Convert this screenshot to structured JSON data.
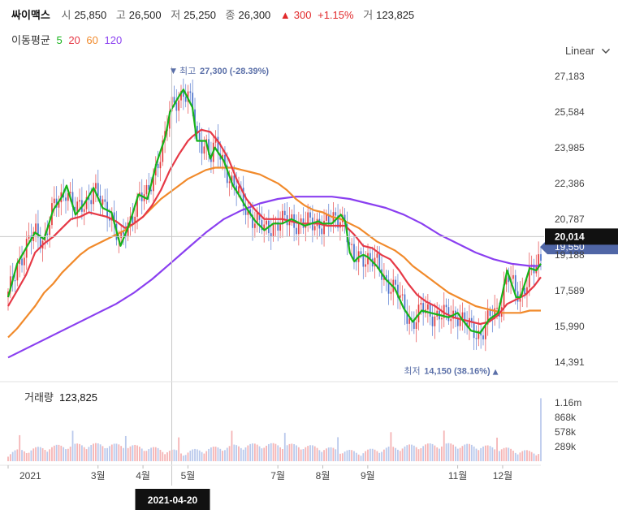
{
  "header": {
    "stock_name": "싸이맥스",
    "open_label": "시",
    "open": "25,850",
    "high_label": "고",
    "high": "26,500",
    "low_label": "저",
    "low": "25,250",
    "close_label": "종",
    "close": "26,300",
    "change_arrow": "▲",
    "change": "300",
    "change_pct": "+1.15%",
    "volume_label": "거",
    "volume": "123,825"
  },
  "ma_legend": {
    "label": "이동평균",
    "ma5": "5",
    "ma20": "20",
    "ma60": "60",
    "ma120": "120"
  },
  "scale_toggle": {
    "label": "Linear",
    "icon": "chevron-down-icon"
  },
  "colors": {
    "ma5": "#16b31a",
    "ma20": "#e63946",
    "ma60": "#f18a2b",
    "ma120": "#8a3ff0",
    "up": "#e1292b",
    "down": "#3a64c8",
    "annot": "#5a6fa8"
  },
  "chart_data": {
    "type": "candlestick",
    "y_ticks": [
      "27,183",
      "25,584",
      "23,985",
      "22,386",
      "20,787",
      "19,188",
      "17,589",
      "15,990",
      "14,391"
    ],
    "y_tick_values": [
      27183,
      25584,
      23985,
      22386,
      20787,
      19188,
      17589,
      15990,
      14391
    ],
    "x_ticks": [
      "2021",
      "3월",
      "4월",
      "5월",
      "7월",
      "8월",
      "9월",
      "11월",
      "12월"
    ],
    "x_tick_months": [
      0.0,
      2.0,
      3.0,
      4.0,
      6.0,
      7.0,
      8.0,
      10.0,
      11.0
    ],
    "month_range": [
      0.0,
      11.85
    ],
    "ylim": [
      13700,
      27700
    ],
    "crosshair": {
      "date": "2021-04-20",
      "month": 3.64,
      "price": "20,014",
      "price_value": 20014
    },
    "current_price": {
      "label": "19,550",
      "value": 19550
    },
    "max_annotation": {
      "arrow": "▼",
      "label": "최고",
      "value": "27,300 (-28.39%)",
      "price": 27300,
      "month": 3.65
    },
    "min_annotation": {
      "label": "최저",
      "value": "14,150 (38.16%)",
      "arrow": "▲",
      "price": 14150,
      "month": 10.85
    },
    "ma_series": {
      "ma5": [
        [
          0.0,
          17300
        ],
        [
          0.2,
          18800
        ],
        [
          0.4,
          19500
        ],
        [
          0.6,
          20200
        ],
        [
          0.8,
          19900
        ],
        [
          1.0,
          21200
        ],
        [
          1.2,
          21800
        ],
        [
          1.3,
          22300
        ],
        [
          1.5,
          21000
        ],
        [
          1.7,
          21500
        ],
        [
          1.9,
          22200
        ],
        [
          2.1,
          21300
        ],
        [
          2.3,
          21100
        ],
        [
          2.5,
          19600
        ],
        [
          2.7,
          20600
        ],
        [
          2.9,
          21900
        ],
        [
          3.1,
          21700
        ],
        [
          3.3,
          23300
        ],
        [
          3.5,
          24500
        ],
        [
          3.6,
          25600
        ],
        [
          3.8,
          26300
        ],
        [
          3.9,
          26600
        ],
        [
          4.1,
          25800
        ],
        [
          4.2,
          24300
        ],
        [
          4.4,
          24300
        ],
        [
          4.5,
          23500
        ],
        [
          4.6,
          24000
        ],
        [
          4.8,
          23400
        ],
        [
          5.0,
          22300
        ],
        [
          5.1,
          22000
        ],
        [
          5.3,
          21300
        ],
        [
          5.5,
          20700
        ],
        [
          5.7,
          20300
        ],
        [
          5.9,
          20600
        ],
        [
          6.1,
          20600
        ],
        [
          6.3,
          20800
        ],
        [
          6.6,
          20500
        ],
        [
          6.9,
          20700
        ],
        [
          7.0,
          20600
        ],
        [
          7.2,
          20600
        ],
        [
          7.4,
          21000
        ],
        [
          7.5,
          20700
        ],
        [
          7.6,
          19300
        ],
        [
          7.7,
          18900
        ],
        [
          7.8,
          19100
        ],
        [
          7.9,
          19200
        ],
        [
          8.0,
          19100
        ],
        [
          8.2,
          18700
        ],
        [
          8.4,
          18100
        ],
        [
          8.6,
          17700
        ],
        [
          8.8,
          16800
        ],
        [
          9.0,
          16200
        ],
        [
          9.2,
          16700
        ],
        [
          9.4,
          16600
        ],
        [
          9.6,
          16500
        ],
        [
          9.8,
          16400
        ],
        [
          10.0,
          16600
        ],
        [
          10.1,
          16300
        ],
        [
          10.3,
          15800
        ],
        [
          10.5,
          15700
        ],
        [
          10.7,
          16300
        ],
        [
          10.9,
          16600
        ],
        [
          11.0,
          17500
        ],
        [
          11.1,
          18500
        ],
        [
          11.3,
          17300
        ],
        [
          11.4,
          17300
        ],
        [
          11.6,
          18600
        ],
        [
          11.75,
          18500
        ],
        [
          11.85,
          18800
        ]
      ],
      "ma20": [
        [
          0.0,
          16900
        ],
        [
          0.2,
          17600
        ],
        [
          0.4,
          18300
        ],
        [
          0.6,
          19300
        ],
        [
          0.8,
          19700
        ],
        [
          1.0,
          20000
        ],
        [
          1.2,
          20400
        ],
        [
          1.4,
          20800
        ],
        [
          1.6,
          20900
        ],
        [
          1.8,
          21100
        ],
        [
          2.0,
          21000
        ],
        [
          2.2,
          20900
        ],
        [
          2.4,
          20700
        ],
        [
          2.6,
          20400
        ],
        [
          2.8,
          20600
        ],
        [
          3.0,
          20900
        ],
        [
          3.2,
          21400
        ],
        [
          3.4,
          22100
        ],
        [
          3.6,
          23000
        ],
        [
          3.8,
          23700
        ],
        [
          4.0,
          24300
        ],
        [
          4.1,
          24500
        ],
        [
          4.3,
          24800
        ],
        [
          4.5,
          24700
        ],
        [
          4.7,
          24200
        ],
        [
          4.9,
          23500
        ],
        [
          5.1,
          22500
        ],
        [
          5.3,
          21700
        ],
        [
          5.5,
          21200
        ],
        [
          5.7,
          20800
        ],
        [
          5.9,
          20800
        ],
        [
          6.1,
          20800
        ],
        [
          6.3,
          20700
        ],
        [
          6.5,
          20600
        ],
        [
          6.7,
          20600
        ],
        [
          6.9,
          20600
        ],
        [
          7.1,
          20500
        ],
        [
          7.3,
          20500
        ],
        [
          7.5,
          20500
        ],
        [
          7.7,
          20100
        ],
        [
          7.9,
          19600
        ],
        [
          8.1,
          19500
        ],
        [
          8.3,
          19200
        ],
        [
          8.5,
          19000
        ],
        [
          8.7,
          18500
        ],
        [
          8.9,
          17900
        ],
        [
          9.1,
          17400
        ],
        [
          9.3,
          17100
        ],
        [
          9.5,
          16900
        ],
        [
          9.7,
          16600
        ],
        [
          9.9,
          16400
        ],
        [
          10.1,
          16300
        ],
        [
          10.3,
          16200
        ],
        [
          10.5,
          16100
        ],
        [
          10.7,
          16200
        ],
        [
          10.9,
          16500
        ],
        [
          11.1,
          17000
        ],
        [
          11.3,
          17200
        ],
        [
          11.5,
          17400
        ],
        [
          11.7,
          17800
        ],
        [
          11.85,
          18200
        ]
      ],
      "ma60": [
        [
          0.0,
          15500
        ],
        [
          0.2,
          15900
        ],
        [
          0.4,
          16400
        ],
        [
          0.6,
          16900
        ],
        [
          0.8,
          17500
        ],
        [
          1.0,
          17900
        ],
        [
          1.2,
          18400
        ],
        [
          1.4,
          18800
        ],
        [
          1.6,
          19200
        ],
        [
          1.8,
          19500
        ],
        [
          2.0,
          19700
        ],
        [
          2.2,
          19900
        ],
        [
          2.4,
          20100
        ],
        [
          2.6,
          20300
        ],
        [
          2.8,
          20600
        ],
        [
          3.0,
          20900
        ],
        [
          3.2,
          21300
        ],
        [
          3.4,
          21700
        ],
        [
          3.6,
          22000
        ],
        [
          3.8,
          22300
        ],
        [
          4.0,
          22600
        ],
        [
          4.2,
          22800
        ],
        [
          4.4,
          23000
        ],
        [
          4.6,
          23100
        ],
        [
          4.8,
          23100
        ],
        [
          5.0,
          23100
        ],
        [
          5.2,
          23000
        ],
        [
          5.4,
          22900
        ],
        [
          5.6,
          22800
        ],
        [
          5.8,
          22600
        ],
        [
          6.0,
          22400
        ],
        [
          6.2,
          22100
        ],
        [
          6.4,
          21700
        ],
        [
          6.6,
          21400
        ],
        [
          6.8,
          21200
        ],
        [
          7.0,
          21100
        ],
        [
          7.2,
          20900
        ],
        [
          7.4,
          20800
        ],
        [
          7.6,
          20600
        ],
        [
          7.8,
          20400
        ],
        [
          8.0,
          20100
        ],
        [
          8.2,
          19800
        ],
        [
          8.4,
          19600
        ],
        [
          8.6,
          19400
        ],
        [
          8.8,
          19100
        ],
        [
          9.0,
          18700
        ],
        [
          9.2,
          18400
        ],
        [
          9.4,
          18100
        ],
        [
          9.6,
          17800
        ],
        [
          9.8,
          17500
        ],
        [
          10.0,
          17300
        ],
        [
          10.2,
          17100
        ],
        [
          10.4,
          16900
        ],
        [
          10.6,
          16800
        ],
        [
          10.8,
          16700
        ],
        [
          11.0,
          16600
        ],
        [
          11.2,
          16600
        ],
        [
          11.4,
          16600
        ],
        [
          11.6,
          16700
        ],
        [
          11.85,
          16700
        ]
      ],
      "ma120": [
        [
          0.0,
          14600
        ],
        [
          0.4,
          15000
        ],
        [
          0.8,
          15400
        ],
        [
          1.2,
          15800
        ],
        [
          1.6,
          16200
        ],
        [
          2.0,
          16600
        ],
        [
          2.4,
          17000
        ],
        [
          2.8,
          17500
        ],
        [
          3.2,
          18100
        ],
        [
          3.6,
          18800
        ],
        [
          4.0,
          19500
        ],
        [
          4.4,
          20200
        ],
        [
          4.8,
          20800
        ],
        [
          5.2,
          21200
        ],
        [
          5.6,
          21500
        ],
        [
          6.0,
          21700
        ],
        [
          6.4,
          21800
        ],
        [
          6.8,
          21800
        ],
        [
          7.2,
          21800
        ],
        [
          7.6,
          21700
        ],
        [
          8.0,
          21500
        ],
        [
          8.4,
          21300
        ],
        [
          8.8,
          21000
        ],
        [
          9.2,
          20600
        ],
        [
          9.6,
          20100
        ],
        [
          10.0,
          19700
        ],
        [
          10.4,
          19300
        ],
        [
          10.8,
          19000
        ],
        [
          11.2,
          18800
        ],
        [
          11.6,
          18700
        ],
        [
          11.85,
          18700
        ]
      ]
    },
    "volume": {
      "label": "거래량",
      "value": "123,825",
      "y_ticks": [
        "1.16m",
        "868k",
        "578k",
        "289k"
      ],
      "y_tick_values": [
        1160000,
        868000,
        578000,
        289000
      ],
      "ylim": [
        0,
        1450000
      ]
    }
  }
}
